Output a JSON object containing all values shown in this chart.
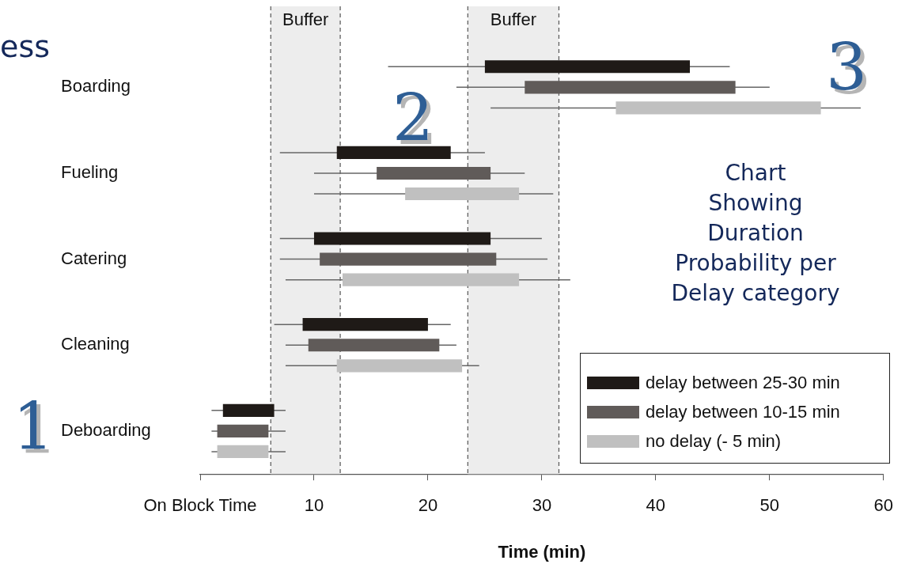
{
  "chart_data": {
    "type": "bar",
    "orientation": "horizontal",
    "xlabel": "Time (min)",
    "categories": [
      "Boarding",
      "Fueling",
      "Catering",
      "Cleaning",
      "Deboarding"
    ],
    "series": [
      {
        "name": "delay between 25-30 min",
        "color": "#1f1a17",
        "base": [
          25,
          12,
          10,
          9,
          2
        ],
        "values": [
          18,
          10,
          15.5,
          11,
          4.5
        ],
        "errors": [
          [
            16.5,
            46.5
          ],
          [
            7,
            25
          ],
          [
            7,
            30
          ],
          [
            6.5,
            22
          ],
          [
            1,
            7.5
          ]
        ]
      },
      {
        "name": "delay between 10-15 min",
        "color": "#605b59",
        "base": [
          28.5,
          15.5,
          10.5,
          9.5,
          1.5
        ],
        "values": [
          18.5,
          10,
          15.5,
          11.5,
          4.5
        ],
        "errors": [
          [
            22.5,
            50
          ],
          [
            10,
            28.5
          ],
          [
            7,
            30.5
          ],
          [
            7.5,
            22.5
          ],
          [
            1,
            7.5
          ]
        ]
      },
      {
        "name": "no delay (- 5 min)",
        "color": "#c0c0c0",
        "base": [
          36.5,
          18,
          12.5,
          12,
          1.5
        ],
        "values": [
          18,
          10,
          15.5,
          11,
          4.5
        ],
        "errors": [
          [
            25.5,
            58
          ],
          [
            10,
            31
          ],
          [
            7.5,
            32.5
          ],
          [
            7.5,
            24.5
          ],
          [
            1,
            7.5
          ]
        ]
      }
    ],
    "xlim": [
      0,
      60
    ],
    "xticks": [
      {
        "value": 0,
        "label": "On Block Time"
      },
      10,
      20,
      30,
      40,
      50,
      60
    ],
    "bands": [
      {
        "axis": "x",
        "from": 6.2,
        "to": 12.3,
        "label": "Buffer",
        "color": "#ededed"
      },
      {
        "axis": "x",
        "from": 23.5,
        "to": 31.5,
        "label": "Buffer",
        "color": "#ededed"
      }
    ],
    "grid": false,
    "legend": "bottom right",
    "annotations": [
      "ess",
      "1",
      "2",
      "3",
      "Chart\nShowing\nDuration\nProbability per\nDelay category"
    ]
  }
}
